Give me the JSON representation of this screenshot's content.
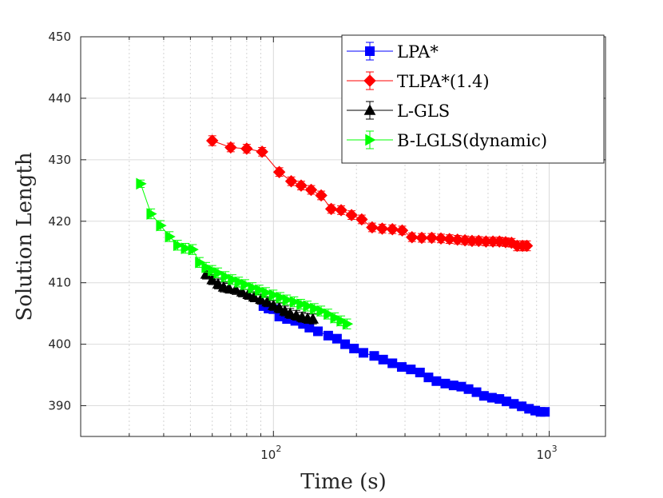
{
  "chart_data": {
    "type": "line",
    "title": "",
    "xlabel": "Time (s)",
    "ylabel": "Solution Length",
    "xscale": "log",
    "xlim": [
      20,
      1600
    ],
    "ylim": [
      385,
      450
    ],
    "grid": true,
    "legend_position": "top-right",
    "x_tick_labels": [
      {
        "value": 100,
        "base": "10",
        "exp": "2"
      },
      {
        "value": 1000,
        "base": "10",
        "exp": "3"
      }
    ],
    "y_ticks": [
      390,
      400,
      410,
      420,
      430,
      440,
      450
    ],
    "series": [
      {
        "name": "LPA*",
        "color": "#0000ff",
        "marker": "square",
        "x": [
          92,
          96,
          100,
          105,
          112,
          120,
          128,
          135,
          145,
          158,
          170,
          182,
          196,
          212,
          232,
          250,
          270,
          292,
          315,
          340,
          365,
          390,
          420,
          450,
          480,
          510,
          545,
          580,
          620,
          660,
          700,
          745,
          795,
          845,
          890,
          930,
          965
        ],
        "y": [
          406.2,
          405.8,
          405.7,
          404.5,
          404.1,
          403.8,
          403.3,
          402.7,
          402.1,
          401.4,
          400.9,
          400.0,
          399.3,
          398.6,
          398.1,
          397.5,
          396.9,
          396.3,
          395.9,
          395.4,
          394.6,
          394.0,
          393.6,
          393.3,
          393.1,
          392.7,
          392.2,
          391.6,
          391.3,
          391.1,
          390.7,
          390.3,
          389.9,
          389.5,
          389.2,
          389.0,
          389.0
        ],
        "err": [
          0.6,
          0.6,
          0.6,
          0.6,
          0.6,
          0.6,
          0.6,
          0.6,
          0.6,
          0.6,
          0.6,
          0.6,
          0.6,
          0.5,
          0.5,
          0.5,
          0.5,
          0.5,
          0.5,
          0.5,
          0.5,
          0.5,
          0.5,
          0.5,
          0.5,
          0.5,
          0.5,
          0.5,
          0.5,
          0.5,
          0.5,
          0.5,
          0.5,
          0.5,
          0.5,
          0.5,
          0.5
        ]
      },
      {
        "name": "TLPA*(1.4)",
        "color": "#ff0000",
        "marker": "diamond",
        "x": [
          60,
          70,
          80,
          91,
          105,
          116,
          126,
          137,
          149,
          162,
          176,
          192,
          209,
          228,
          248,
          270,
          293,
          318,
          345,
          375,
          405,
          435,
          465,
          495,
          525,
          555,
          590,
          625,
          660,
          695,
          730,
          765,
          800,
          830
        ],
        "y": [
          433.1,
          432.0,
          431.8,
          431.3,
          428.0,
          426.5,
          425.8,
          425.1,
          424.2,
          422.0,
          421.8,
          421.0,
          420.3,
          419.0,
          418.8,
          418.7,
          418.5,
          417.4,
          417.3,
          417.3,
          417.2,
          417.1,
          417.0,
          416.9,
          416.8,
          416.8,
          416.7,
          416.7,
          416.7,
          416.6,
          416.5,
          416.0,
          416.0,
          416.0
        ],
        "err": [
          0.8,
          0.7,
          0.7,
          0.7,
          0.7,
          0.7,
          0.7,
          0.7,
          0.7,
          0.7,
          0.7,
          0.7,
          0.7,
          0.7,
          0.7,
          0.7,
          0.7,
          0.7,
          0.7,
          0.7,
          0.7,
          0.7,
          0.7,
          0.7,
          0.7,
          0.7,
          0.7,
          0.7,
          0.7,
          0.7,
          0.7,
          0.8,
          0.8,
          0.8
        ]
      },
      {
        "name": "L-GLS",
        "color": "#000000",
        "marker": "triangle-up",
        "x": [
          57,
          60,
          63,
          66,
          69,
          73,
          77,
          81,
          85,
          90,
          95,
          100,
          105,
          110,
          115,
          121,
          127,
          133,
          139
        ],
        "y": [
          411.4,
          410.5,
          409.8,
          409.3,
          409.1,
          408.9,
          408.5,
          408.1,
          407.7,
          407.3,
          406.9,
          406.3,
          405.9,
          405.4,
          405.0,
          404.7,
          404.4,
          404.2,
          404.1
        ],
        "err": [
          0.8,
          0.8,
          0.8,
          0.8,
          0.8,
          0.8,
          0.8,
          0.8,
          0.8,
          0.8,
          0.8,
          0.8,
          0.8,
          0.8,
          0.8,
          0.8,
          0.8,
          0.8,
          0.8
        ]
      },
      {
        "name": "B-LGLS(dynamic)",
        "color": "#00ff00",
        "marker": "triangle-right",
        "x": [
          33,
          36,
          39,
          42,
          45,
          48,
          51,
          54,
          57,
          60,
          63,
          67,
          71,
          75,
          79,
          84,
          89,
          94,
          100,
          106,
          112,
          119,
          126,
          133,
          141,
          149,
          158,
          167,
          176,
          185
        ],
        "y": [
          426.1,
          421.2,
          419.3,
          417.5,
          416.1,
          415.6,
          415.4,
          413.3,
          412.5,
          412.0,
          411.6,
          411.0,
          410.5,
          410.1,
          409.7,
          409.2,
          408.8,
          408.4,
          408.0,
          407.6,
          407.2,
          406.9,
          406.5,
          406.2,
          405.8,
          405.4,
          404.9,
          404.3,
          403.8,
          403.3
        ],
        "err": [
          0.6,
          0.8,
          0.8,
          0.8,
          0.8,
          0.8,
          0.8,
          0.8,
          0.8,
          0.8,
          0.8,
          0.8,
          0.8,
          0.8,
          0.8,
          0.8,
          0.8,
          0.8,
          0.8,
          0.8,
          0.8,
          0.8,
          0.8,
          0.8,
          0.8,
          0.8,
          0.8,
          0.8,
          0.8,
          0.8
        ]
      }
    ]
  }
}
